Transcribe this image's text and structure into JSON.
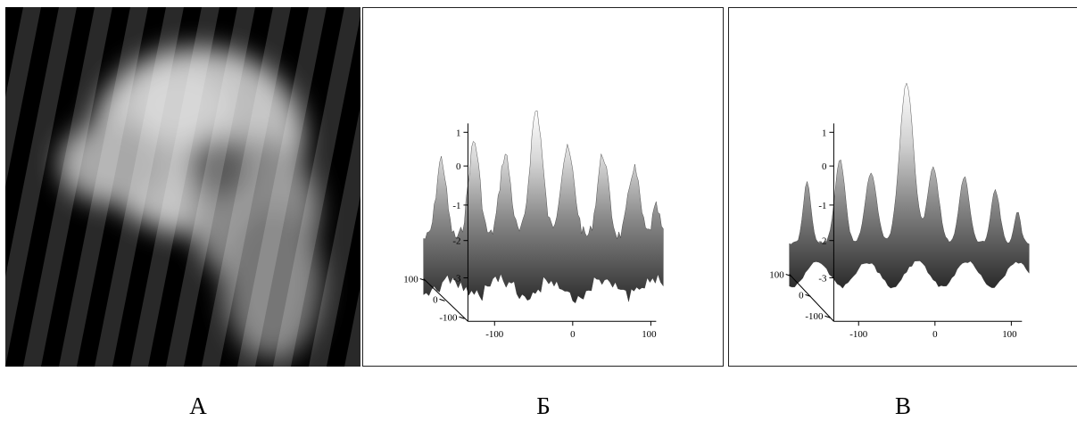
{
  "panels": [
    {
      "caption": "А",
      "kind": "image",
      "stripe_count": 13
    },
    {
      "caption": "Б",
      "kind": "surface-plot",
      "z_ticks": [
        "1",
        "0",
        "-1",
        "-2",
        "-3"
      ],
      "x_ticks": [
        "-100",
        "0",
        "100"
      ],
      "y_ticks": [
        "100",
        "0",
        "-100"
      ]
    },
    {
      "caption": "В",
      "kind": "surface-plot",
      "z_ticks": [
        "1",
        "0",
        "-1",
        "-2",
        "-3"
      ],
      "x_ticks": [
        "-100",
        "0",
        "100"
      ],
      "y_ticks": [
        "100",
        "0",
        "-100"
      ]
    }
  ]
}
